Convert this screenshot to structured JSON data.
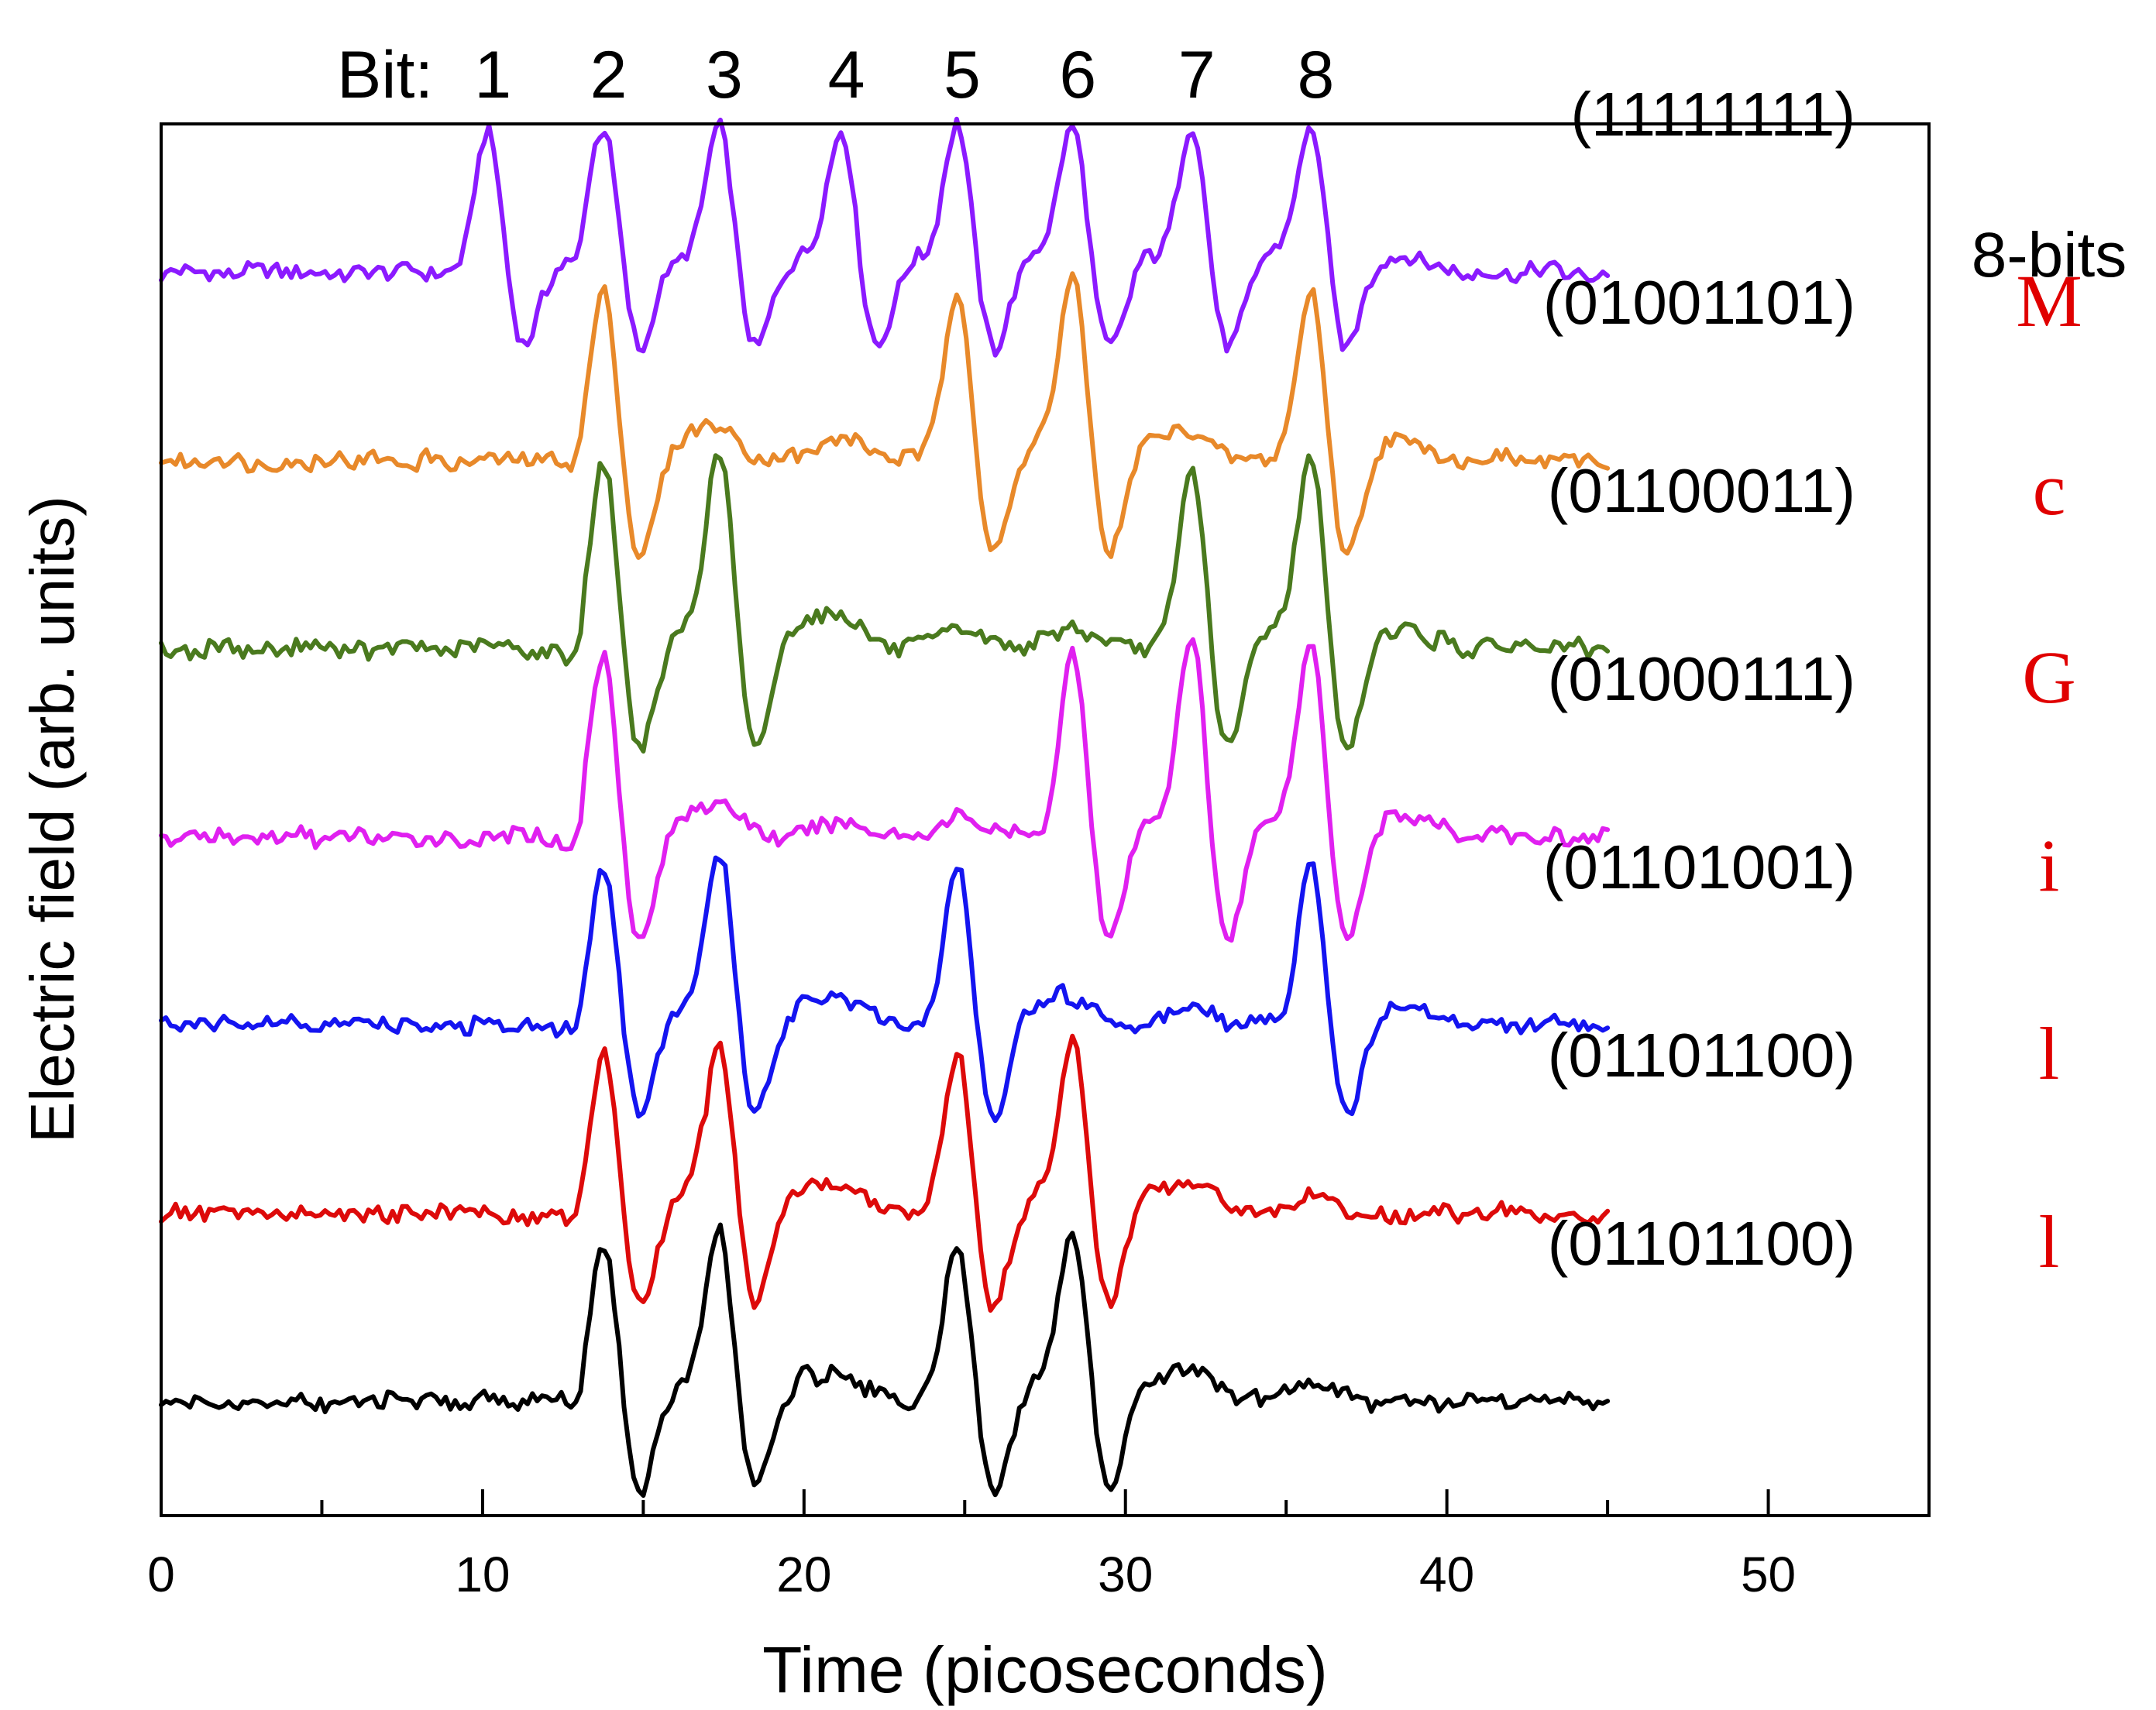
{
  "chart_data": {
    "type": "line",
    "title": "",
    "xlabel": "Time (picoseconds)",
    "ylabel": "Electric field (arb. units)",
    "xlim": [
      0,
      55
    ],
    "x_ticks": [
      0,
      10,
      20,
      30,
      40,
      50
    ],
    "y_ticks_labeled": false,
    "grid": false,
    "legend": "none",
    "bit_label": "Bit:",
    "bits": [
      {
        "label": "1",
        "time": 10.2
      },
      {
        "label": "2",
        "time": 13.8
      },
      {
        "label": "3",
        "time": 17.4
      },
      {
        "label": "4",
        "time": 21.2
      },
      {
        "label": "5",
        "time": 24.8
      },
      {
        "label": "6",
        "time": 28.4
      },
      {
        "label": "7",
        "time": 32.1
      },
      {
        "label": "8",
        "time": 35.8
      }
    ],
    "column_header": "8-bits",
    "column_header_color": "#000000",
    "character_color": "#e00000",
    "trace_x_range": [
      0,
      45
    ],
    "series": [
      {
        "code": "(11111111)",
        "char": "",
        "color": "#8b1aff",
        "offset": 6,
        "bits": "11111111",
        "amp": 0.6
      },
      {
        "code": "(01001101)",
        "char": "M",
        "color": "#e8892a",
        "offset": 5,
        "bits": "01001101",
        "amp": 0.75
      },
      {
        "code": "(01100011)",
        "char": "c",
        "color": "#4a7a1e",
        "offset": 4,
        "bits": "01100011",
        "amp": 0.8
      },
      {
        "code": "(01000111)",
        "char": "G",
        "color": "#e020f0",
        "offset": 3,
        "bits": "01000111",
        "amp": 0.8
      },
      {
        "code": "(01101001)",
        "char": "i",
        "color": "#1414f0",
        "offset": 2,
        "bits": "01101001",
        "amp": 0.7
      },
      {
        "code": "(01101100)",
        "char": "l",
        "color": "#dd0a0a",
        "offset": 1,
        "bits": "01101100",
        "amp": 0.7
      },
      {
        "code": "(01101100)",
        "char": "l",
        "color": "#000000",
        "offset": 0,
        "bits": "01101100",
        "amp": 0.7
      }
    ]
  }
}
